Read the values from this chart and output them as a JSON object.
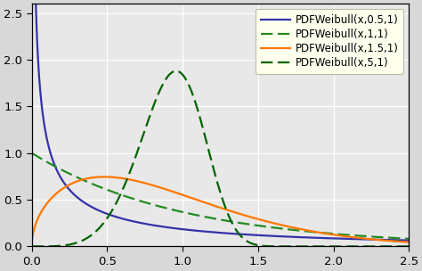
{
  "xlim": [
    0.0,
    2.5
  ],
  "ylim": [
    0.0,
    2.6
  ],
  "xticks": [
    0.0,
    0.5,
    1.0,
    1.5,
    2.0,
    2.5
  ],
  "yticks": [
    0.0,
    0.5,
    1.0,
    1.5,
    2.0,
    2.5
  ],
  "curves": [
    {
      "k": 0.5,
      "lam": 1,
      "color": "#3333aa",
      "linestyle": "solid",
      "label": "PDFWeibull(x,0.5,1)"
    },
    {
      "k": 1.0,
      "lam": 1,
      "color": "#228B22",
      "linestyle": "dashed",
      "label": "PDFWeibull(x,1,1)"
    },
    {
      "k": 1.5,
      "lam": 1,
      "color": "#FF7700",
      "linestyle": "solid",
      "label": "PDFWeibull(x,1.5,1)"
    },
    {
      "k": 5.0,
      "lam": 1,
      "color": "#006400",
      "linestyle": "dashed",
      "label": "PDFWeibull(x,5,1)"
    }
  ],
  "legend_facecolor": "#ffffee",
  "legend_edgecolor": "#bbbbaa",
  "outer_background": "#d8d8d8",
  "plot_background": "#e8e8e8",
  "grid_color": "#ffffff",
  "spine_color": "#000000",
  "tick_color": "#000000",
  "linewidth": 1.6,
  "legend_fontsize": 8.5,
  "tick_fontsize": 9.5
}
